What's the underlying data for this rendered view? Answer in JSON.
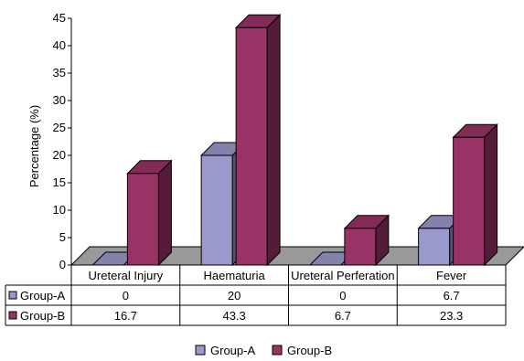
{
  "chart_data": {
    "type": "bar",
    "ylabel": "Percentage (%)",
    "ylim": [
      0,
      45
    ],
    "yticks": [
      0,
      5,
      10,
      15,
      20,
      25,
      30,
      35,
      40,
      45
    ],
    "grid": false,
    "legend_position": "bottom",
    "categories": [
      "Ureteral Injury",
      "Haematuria",
      "Ureteral Perferation",
      "Fever"
    ],
    "series": [
      {
        "name": "Group-A",
        "values": [
          0,
          20,
          0,
          6.7
        ],
        "labels": [
          "0",
          "20",
          "0",
          "6.7"
        ],
        "color": "#9999cc"
      },
      {
        "name": "Group-B",
        "values": [
          16.7,
          43.3,
          6.7,
          23.3
        ],
        "labels": [
          "16.7",
          "43.3",
          "6.7",
          "23.3"
        ],
        "color": "#993366"
      }
    ]
  }
}
